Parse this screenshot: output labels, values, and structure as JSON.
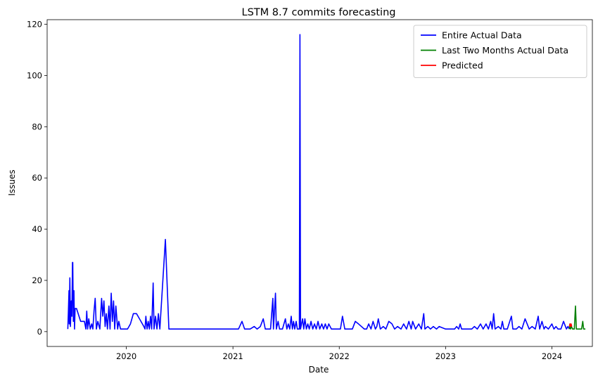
{
  "chart_data": {
    "type": "line",
    "title": "LSTM 8.7 commits forecasting",
    "xlabel": "Date",
    "ylabel": "Issues",
    "xlim": [
      "2019-04-04",
      "2024-05-19"
    ],
    "ylim": [
      -5.8,
      121.8
    ],
    "x_ticks": [
      "2020-01-01",
      "2021-01-01",
      "2022-01-01",
      "2023-01-01",
      "2024-01-01"
    ],
    "x_tick_labels": [
      "2020",
      "2021",
      "2022",
      "2023",
      "2024"
    ],
    "y_ticks": [
      0,
      20,
      40,
      60,
      80,
      100,
      120
    ],
    "y_tick_labels": [
      "0",
      "20",
      "40",
      "60",
      "80",
      "100",
      "120"
    ],
    "legend_position": "top-right",
    "grid": false,
    "series": [
      {
        "name": "Entire Actual Data",
        "color": "#0000ff",
        "points": [
          [
            "2019-06-14",
            1
          ],
          [
            "2019-06-16",
            8
          ],
          [
            "2019-06-18",
            16
          ],
          [
            "2019-06-19",
            3
          ],
          [
            "2019-06-21",
            21
          ],
          [
            "2019-06-23",
            2
          ],
          [
            "2019-06-26",
            12
          ],
          [
            "2019-06-28",
            6
          ],
          [
            "2019-06-30",
            27
          ],
          [
            "2019-07-01",
            27
          ],
          [
            "2019-07-03",
            4
          ],
          [
            "2019-07-05",
            16
          ],
          [
            "2019-07-07",
            1
          ],
          [
            "2019-07-09",
            9
          ],
          [
            "2019-07-14",
            9
          ],
          [
            "2019-07-28",
            4
          ],
          [
            "2019-08-10",
            4
          ],
          [
            "2019-08-15",
            1
          ],
          [
            "2019-08-18",
            8
          ],
          [
            "2019-08-21",
            1
          ],
          [
            "2019-08-25",
            5
          ],
          [
            "2019-08-30",
            1
          ],
          [
            "2019-09-04",
            3
          ],
          [
            "2019-09-08",
            1
          ],
          [
            "2019-09-12",
            8
          ],
          [
            "2019-09-16",
            13
          ],
          [
            "2019-09-20",
            1
          ],
          [
            "2019-09-25",
            4
          ],
          [
            "2019-10-02",
            1
          ],
          [
            "2019-10-08",
            13
          ],
          [
            "2019-10-12",
            6
          ],
          [
            "2019-10-16",
            12
          ],
          [
            "2019-10-20",
            2
          ],
          [
            "2019-10-24",
            7
          ],
          [
            "2019-10-28",
            1
          ],
          [
            "2019-11-02",
            10
          ],
          [
            "2019-11-06",
            1
          ],
          [
            "2019-11-10",
            15
          ],
          [
            "2019-11-14",
            4
          ],
          [
            "2019-11-18",
            12
          ],
          [
            "2019-11-22",
            1
          ],
          [
            "2019-11-26",
            10
          ],
          [
            "2019-12-02",
            1
          ],
          [
            "2019-12-06",
            4
          ],
          [
            "2019-12-12",
            1
          ],
          [
            "2019-12-25",
            1
          ],
          [
            "2020-01-05",
            1
          ],
          [
            "2020-01-15",
            3
          ],
          [
            "2020-01-25",
            7
          ],
          [
            "2020-02-05",
            7
          ],
          [
            "2020-02-20",
            4
          ],
          [
            "2020-03-01",
            2
          ],
          [
            "2020-03-05",
            1
          ],
          [
            "2020-03-08",
            6
          ],
          [
            "2020-03-12",
            1
          ],
          [
            "2020-03-16",
            4
          ],
          [
            "2020-03-20",
            1
          ],
          [
            "2020-03-24",
            6
          ],
          [
            "2020-03-28",
            1
          ],
          [
            "2020-04-02",
            19
          ],
          [
            "2020-04-05",
            1
          ],
          [
            "2020-04-10",
            6
          ],
          [
            "2020-04-15",
            1
          ],
          [
            "2020-04-20",
            7
          ],
          [
            "2020-04-25",
            1
          ],
          [
            "2020-05-14",
            36
          ],
          [
            "2020-05-26",
            1
          ],
          [
            "2020-08-01",
            1
          ],
          [
            "2020-11-01",
            1
          ],
          [
            "2021-01-01",
            1
          ],
          [
            "2021-01-20",
            1
          ],
          [
            "2021-02-01",
            4
          ],
          [
            "2021-02-10",
            1
          ],
          [
            "2021-03-01",
            1
          ],
          [
            "2021-03-15",
            2
          ],
          [
            "2021-03-25",
            1
          ],
          [
            "2021-04-05",
            2
          ],
          [
            "2021-04-15",
            5
          ],
          [
            "2021-04-22",
            1
          ],
          [
            "2021-05-10",
            1
          ],
          [
            "2021-05-18",
            13
          ],
          [
            "2021-05-20",
            1
          ],
          [
            "2021-05-27",
            15
          ],
          [
            "2021-05-30",
            1
          ],
          [
            "2021-06-05",
            4
          ],
          [
            "2021-06-10",
            1
          ],
          [
            "2021-06-20",
            1
          ],
          [
            "2021-06-30",
            5
          ],
          [
            "2021-07-05",
            1
          ],
          [
            "2021-07-10",
            3
          ],
          [
            "2021-07-15",
            1
          ],
          [
            "2021-07-20",
            6
          ],
          [
            "2021-07-24",
            1
          ],
          [
            "2021-07-28",
            4
          ],
          [
            "2021-08-01",
            1
          ],
          [
            "2021-08-06",
            4
          ],
          [
            "2021-08-10",
            1
          ],
          [
            "2021-08-17",
            1
          ],
          [
            "2021-08-19",
            116
          ],
          [
            "2021-08-21",
            1
          ],
          [
            "2021-08-28",
            5
          ],
          [
            "2021-09-01",
            1
          ],
          [
            "2021-09-05",
            5
          ],
          [
            "2021-09-10",
            1
          ],
          [
            "2021-09-15",
            3
          ],
          [
            "2021-09-20",
            1
          ],
          [
            "2021-09-26",
            4
          ],
          [
            "2021-10-02",
            1
          ],
          [
            "2021-10-08",
            3
          ],
          [
            "2021-10-14",
            1
          ],
          [
            "2021-10-20",
            4
          ],
          [
            "2021-10-26",
            1
          ],
          [
            "2021-11-02",
            3
          ],
          [
            "2021-11-08",
            1
          ],
          [
            "2021-11-14",
            3
          ],
          [
            "2021-11-20",
            1
          ],
          [
            "2021-11-26",
            3
          ],
          [
            "2021-12-05",
            1
          ],
          [
            "2021-12-20",
            1
          ],
          [
            "2022-01-05",
            1
          ],
          [
            "2022-01-12",
            6
          ],
          [
            "2022-01-20",
            1
          ],
          [
            "2022-02-15",
            1
          ],
          [
            "2022-02-25",
            4
          ],
          [
            "2022-03-08",
            3
          ],
          [
            "2022-03-18",
            2
          ],
          [
            "2022-03-28",
            1
          ],
          [
            "2022-04-05",
            1
          ],
          [
            "2022-04-12",
            3
          ],
          [
            "2022-04-20",
            1
          ],
          [
            "2022-04-27",
            4
          ],
          [
            "2022-05-05",
            1
          ],
          [
            "2022-05-10",
            2
          ],
          [
            "2022-05-15",
            5
          ],
          [
            "2022-05-22",
            1
          ],
          [
            "2022-06-01",
            2
          ],
          [
            "2022-06-10",
            1
          ],
          [
            "2022-06-20",
            4
          ],
          [
            "2022-07-01",
            3
          ],
          [
            "2022-07-10",
            1
          ],
          [
            "2022-07-20",
            2
          ],
          [
            "2022-08-01",
            1
          ],
          [
            "2022-08-10",
            3
          ],
          [
            "2022-08-20",
            1
          ],
          [
            "2022-08-28",
            4
          ],
          [
            "2022-09-05",
            1
          ],
          [
            "2022-09-10",
            4
          ],
          [
            "2022-09-20",
            1
          ],
          [
            "2022-10-01",
            3
          ],
          [
            "2022-10-10",
            1
          ],
          [
            "2022-10-18",
            7
          ],
          [
            "2022-10-22",
            1
          ],
          [
            "2022-11-01",
            2
          ],
          [
            "2022-11-10",
            1
          ],
          [
            "2022-11-20",
            2
          ],
          [
            "2022-12-01",
            1
          ],
          [
            "2022-12-10",
            2
          ],
          [
            "2023-01-01",
            1
          ],
          [
            "2023-02-01",
            1
          ],
          [
            "2023-02-08",
            2
          ],
          [
            "2023-02-15",
            1
          ],
          [
            "2023-02-20",
            3
          ],
          [
            "2023-02-25",
            1
          ],
          [
            "2023-04-01",
            1
          ],
          [
            "2023-04-10",
            2
          ],
          [
            "2023-04-20",
            1
          ],
          [
            "2023-05-01",
            3
          ],
          [
            "2023-05-10",
            1
          ],
          [
            "2023-05-20",
            3
          ],
          [
            "2023-05-28",
            1
          ],
          [
            "2023-06-05",
            4
          ],
          [
            "2023-06-10",
            1
          ],
          [
            "2023-06-15",
            7
          ],
          [
            "2023-06-20",
            1
          ],
          [
            "2023-07-01",
            2
          ],
          [
            "2023-07-10",
            1
          ],
          [
            "2023-07-15",
            4
          ],
          [
            "2023-07-20",
            1
          ],
          [
            "2023-08-01",
            1
          ],
          [
            "2023-08-15",
            6
          ],
          [
            "2023-08-20",
            1
          ],
          [
            "2023-09-01",
            1
          ],
          [
            "2023-09-10",
            2
          ],
          [
            "2023-09-20",
            1
          ],
          [
            "2023-10-01",
            5
          ],
          [
            "2023-10-15",
            1
          ],
          [
            "2023-10-25",
            2
          ],
          [
            "2023-11-05",
            1
          ],
          [
            "2023-11-15",
            6
          ],
          [
            "2023-11-20",
            1
          ],
          [
            "2023-11-28",
            4
          ],
          [
            "2023-12-05",
            1
          ],
          [
            "2023-12-10",
            2
          ],
          [
            "2023-12-20",
            1
          ],
          [
            "2024-01-01",
            3
          ],
          [
            "2024-01-08",
            1
          ],
          [
            "2024-01-15",
            2
          ],
          [
            "2024-01-22",
            1
          ],
          [
            "2024-02-01",
            1
          ],
          [
            "2024-02-10",
            4
          ],
          [
            "2024-02-20",
            1
          ],
          [
            "2024-02-25",
            2
          ],
          [
            "2024-03-01",
            1
          ]
        ]
      },
      {
        "name": "Last Two Months Actual Data",
        "color": "#008000",
        "points": [
          [
            "2024-03-01",
            1
          ],
          [
            "2024-03-03",
            3
          ],
          [
            "2024-03-05",
            1
          ],
          [
            "2024-03-08",
            2
          ],
          [
            "2024-03-12",
            1
          ],
          [
            "2024-03-18",
            1
          ],
          [
            "2024-03-22",
            10
          ],
          [
            "2024-03-25",
            1
          ],
          [
            "2024-04-05",
            1
          ],
          [
            "2024-04-12",
            1
          ],
          [
            "2024-04-16",
            4
          ],
          [
            "2024-04-19",
            1
          ],
          [
            "2024-04-25",
            1
          ]
        ]
      },
      {
        "name": "Predicted",
        "color": "#ff0000",
        "points": [
          [
            "2024-03-01",
            2
          ],
          [
            "2024-03-03",
            3
          ],
          [
            "2024-03-05",
            2
          ],
          [
            "2024-03-07",
            3
          ],
          [
            "2024-03-09",
            2
          ]
        ]
      }
    ]
  }
}
